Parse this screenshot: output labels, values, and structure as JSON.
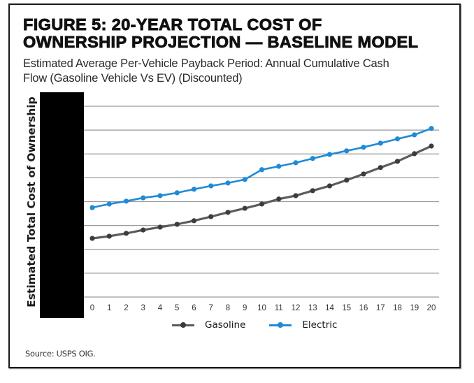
{
  "figure": {
    "title_line1": "FIGURE 5: 20-YEAR TOTAL COST OF",
    "title_line2": "OWNERSHIP PROJECTION — BASELINE MODEL",
    "subtitle_line1": "Estimated Average Per-Vehicle Payback Period: Annual Cumulative Cash",
    "subtitle_line2": "Flow (Gasoline Vehicle Vs EV) (Discounted)",
    "source": "Source: USPS OIG."
  },
  "chart_data": {
    "type": "line",
    "title": "FIGURE 5: 20-YEAR TOTAL COST OF OWNERSHIP PROJECTION — BASELINE MODEL",
    "subtitle": "Estimated Average Per-Vehicle Payback Period: Annual Cumulative Cash Flow (Gasoline Vehicle Vs EV) (Discounted)",
    "xlabel": "",
    "ylabel": "Estimated Total Cost of Ownership",
    "y_tick_labels_redacted": true,
    "y_units_note": "Y-axis values redacted; values expressed in gridline units (0 = bottom gridline, 8 = top gridline)",
    "x": [
      0,
      1,
      2,
      3,
      4,
      5,
      6,
      7,
      8,
      9,
      10,
      11,
      12,
      13,
      14,
      15,
      16,
      17,
      18,
      19,
      20
    ],
    "x_tick_labels": [
      "0",
      "1",
      "2",
      "3",
      "4",
      "5",
      "6",
      "7",
      "8",
      "9",
      "10",
      "11",
      "12",
      "13",
      "14",
      "15",
      "16",
      "17",
      "18",
      "19",
      "20"
    ],
    "ylim": [
      0,
      8
    ],
    "y_gridlines": [
      0,
      1,
      2,
      3,
      4,
      5,
      6,
      7,
      8
    ],
    "grid": true,
    "legend_position": "bottom-center",
    "series": [
      {
        "name": "Gasoline",
        "color": "#4a4a4a",
        "values": [
          2.46,
          2.55,
          2.67,
          2.81,
          2.93,
          3.05,
          3.2,
          3.37,
          3.55,
          3.72,
          3.9,
          4.11,
          4.25,
          4.46,
          4.66,
          4.9,
          5.16,
          5.43,
          5.69,
          6.01,
          6.33
        ]
      },
      {
        "name": "Electric",
        "color": "#1f8ad6",
        "values": [
          3.75,
          3.9,
          4.02,
          4.16,
          4.25,
          4.37,
          4.52,
          4.66,
          4.78,
          4.93,
          5.34,
          5.48,
          5.63,
          5.81,
          5.98,
          6.13,
          6.28,
          6.45,
          6.63,
          6.8,
          7.07
        ]
      }
    ]
  },
  "colors": {
    "grid": "#9a9a9a",
    "redaction": "#000000"
  }
}
